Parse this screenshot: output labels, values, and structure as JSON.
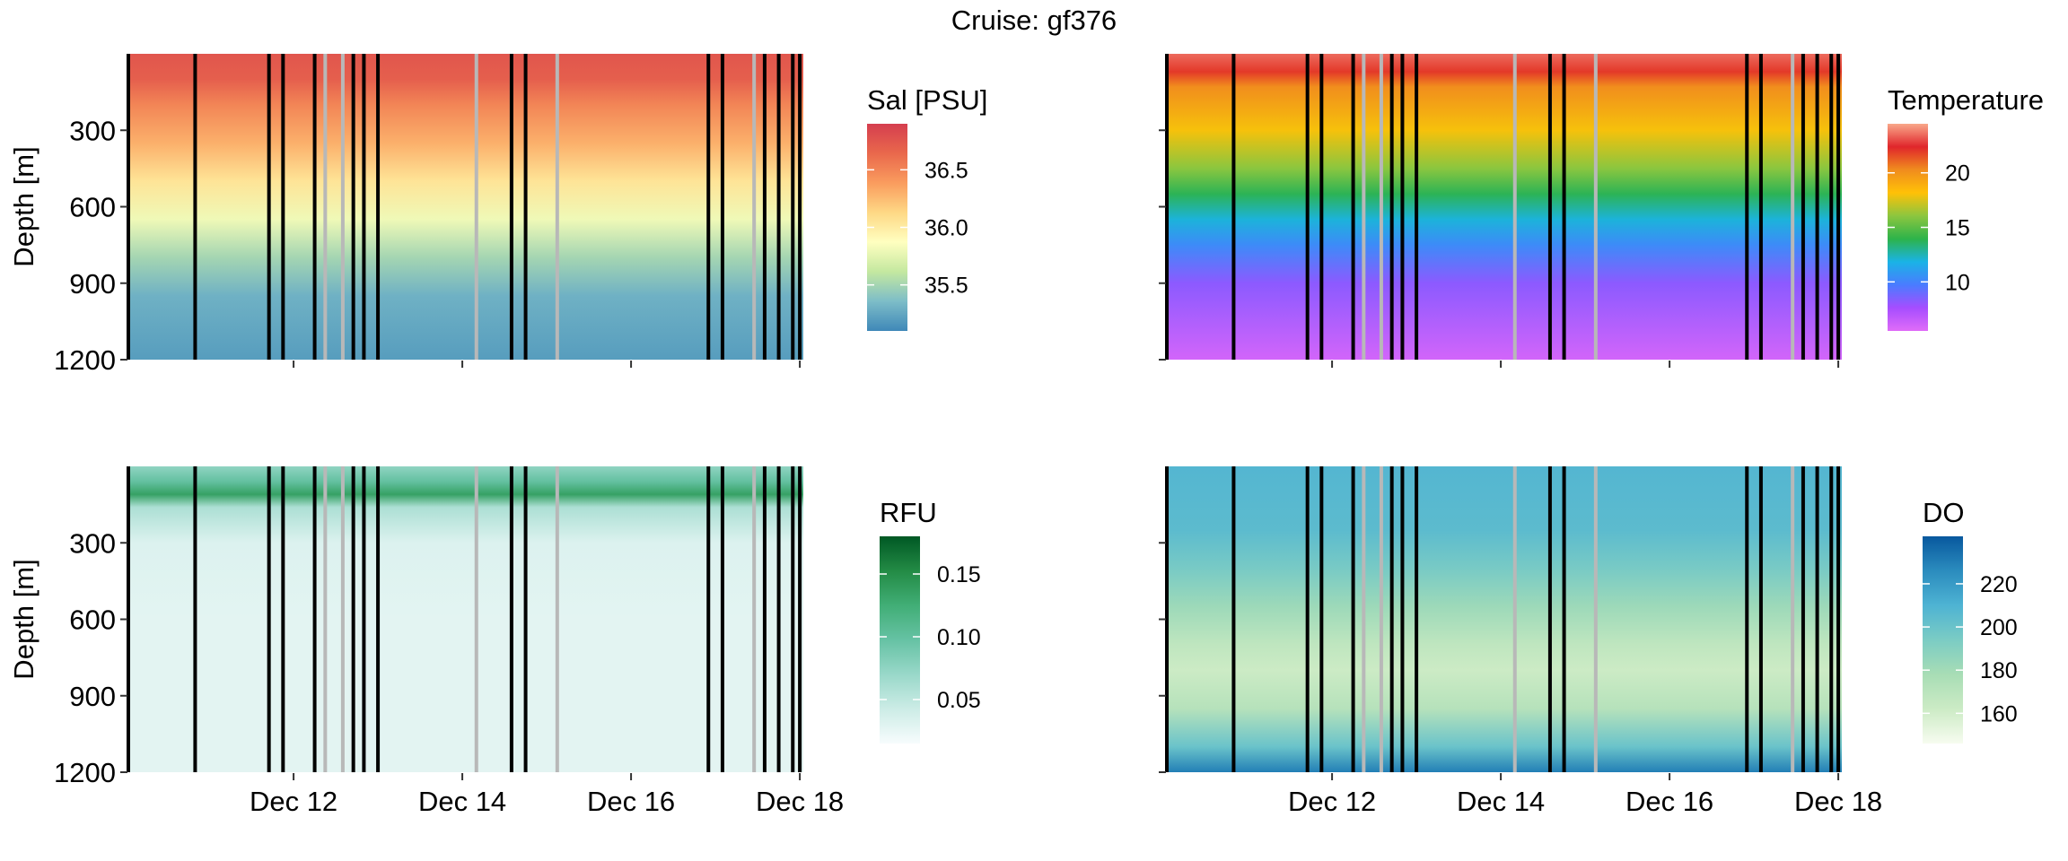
{
  "title": "Cruise: gf376",
  "colors": {
    "station_line": "#000000",
    "highlight_line": "#b8b8b8"
  },
  "chart_data": [
    {
      "type": "heatmap",
      "id": "sal",
      "title": "",
      "xlabel": "",
      "ylabel": "Depth [m]",
      "y_reversed": true,
      "ylim": [
        1200,
        0
      ],
      "yticks": [
        300,
        600,
        900,
        1200
      ],
      "xlim": [
        "2023-12-10T01:00",
        "2023-12-18T01:00"
      ],
      "xticks": [],
      "grid": false,
      "colorbar": {
        "title": "Sal [PSU]",
        "range": [
          35.1,
          36.9
        ],
        "ticks": [
          35.5,
          36.0,
          36.5
        ],
        "tick_labels": [
          "35.5",
          "36.0",
          "36.5"
        ],
        "palette": [
          "#3f88b8",
          "#7dbdc8",
          "#c4e8a0",
          "#ffffc0",
          "#fed885",
          "#fa9c5e",
          "#e9684c",
          "#d53e4f"
        ]
      },
      "profile": [
        [
          0,
          36.75
        ],
        [
          100,
          36.7
        ],
        [
          200,
          36.5
        ],
        [
          350,
          36.3
        ],
        [
          500,
          36.05
        ],
        [
          650,
          35.8
        ],
        [
          800,
          35.5
        ],
        [
          950,
          35.3
        ],
        [
          1200,
          35.2
        ]
      ]
    },
    {
      "type": "heatmap",
      "id": "temp",
      "title": "",
      "xlabel": "",
      "ylabel": "",
      "y_reversed": true,
      "ylim": [
        1200,
        0
      ],
      "yticks": [
        300,
        600,
        900,
        1200
      ],
      "xlim": [
        "2023-12-10T01:00",
        "2023-12-18T01:00"
      ],
      "xticks": [],
      "grid": false,
      "colorbar": {
        "title": "Temperature",
        "range": [
          5.5,
          24.5
        ],
        "ticks": [
          10,
          15,
          20
        ],
        "tick_labels": [
          "10",
          "15",
          "20"
        ],
        "palette": [
          "#e06cf8",
          "#a64dff",
          "#4a7cff",
          "#1ab3e6",
          "#2db34a",
          "#8cc63f",
          "#ffc107",
          "#f08c1e",
          "#e0262b",
          "#f9a88a"
        ]
      },
      "profile": [
        [
          0,
          23.5
        ],
        [
          70,
          22.0
        ],
        [
          130,
          20.2
        ],
        [
          300,
          18.0
        ],
        [
          450,
          16.0
        ],
        [
          550,
          13.8
        ],
        [
          650,
          12.0
        ],
        [
          750,
          10.3
        ],
        [
          900,
          8.2
        ],
        [
          1200,
          6.0
        ]
      ]
    },
    {
      "type": "heatmap",
      "id": "rfu",
      "title": "",
      "xlabel": "",
      "ylabel": "Depth [m]",
      "y_reversed": true,
      "ylim": [
        1200,
        0
      ],
      "yticks": [
        300,
        600,
        900,
        1200
      ],
      "xlim": [
        "2023-12-10T01:00",
        "2023-12-18T01:00"
      ],
      "xticks": [
        "2023-12-12",
        "2023-12-14",
        "2023-12-16",
        "2023-12-18"
      ],
      "xtick_labels": [
        "Dec 12",
        "Dec 14",
        "Dec 16",
        "Dec 18"
      ],
      "grid": false,
      "colorbar": {
        "title": "RFU",
        "range": [
          0.015,
          0.18
        ],
        "ticks": [
          0.05,
          0.1,
          0.15
        ],
        "tick_labels": [
          "0.05",
          "0.10",
          "0.15"
        ],
        "palette": [
          "#f7fcfd",
          "#ccece6",
          "#99d8c9",
          "#66c2a4",
          "#41ae76",
          "#238b45",
          "#005824"
        ]
      },
      "profile": [
        [
          0,
          0.075
        ],
        [
          60,
          0.1
        ],
        [
          110,
          0.135
        ],
        [
          160,
          0.06
        ],
        [
          300,
          0.032
        ],
        [
          600,
          0.028
        ],
        [
          1200,
          0.028
        ]
      ]
    },
    {
      "type": "heatmap",
      "id": "do",
      "title": "",
      "xlabel": "",
      "ylabel": "",
      "y_reversed": true,
      "ylim": [
        1200,
        0
      ],
      "yticks": [
        300,
        600,
        900,
        1200
      ],
      "xlim": [
        "2023-12-10T01:00",
        "2023-12-18T01:00"
      ],
      "xticks": [
        "2023-12-12",
        "2023-12-14",
        "2023-12-16",
        "2023-12-18"
      ],
      "xtick_labels": [
        "Dec 12",
        "Dec 14",
        "Dec 16",
        "Dec 18"
      ],
      "grid": false,
      "colorbar": {
        "title": "DO",
        "range": [
          146,
          242
        ],
        "ticks": [
          160,
          180,
          200,
          220
        ],
        "tick_labels": [
          "160",
          "180",
          "200",
          "220"
        ],
        "palette": [
          "#f7fcf0",
          "#ccebc5",
          "#a8ddb5",
          "#7bccc4",
          "#4eb3d3",
          "#2b8cbe",
          "#08589e"
        ]
      },
      "profile": [
        [
          0,
          208
        ],
        [
          250,
          205
        ],
        [
          400,
          195
        ],
        [
          550,
          182
        ],
        [
          700,
          168
        ],
        [
          800,
          162
        ],
        [
          950,
          172
        ],
        [
          1100,
          200
        ],
        [
          1200,
          230
        ]
      ]
    }
  ],
  "stations": {
    "black": [
      "2023-12-10T01:00",
      "2023-12-10T20:00",
      "2023-12-11T17:00",
      "2023-12-11T21:00",
      "2023-12-12T06:00",
      "2023-12-12T17:00",
      "2023-12-12T20:00",
      "2023-12-13T00:00",
      "2023-12-14T14:00",
      "2023-12-14T18:00",
      "2023-12-16T22:00",
      "2023-12-17T02:00",
      "2023-12-17T14:00",
      "2023-12-17T18:00",
      "2023-12-17T22:00",
      "2023-12-18T00:00"
    ],
    "grey": [
      "2023-12-12T09:00",
      "2023-12-12T14:00",
      "2023-12-14T04:00",
      "2023-12-14T14:00",
      "2023-12-15T03:00",
      "2023-12-17T11:00"
    ]
  }
}
